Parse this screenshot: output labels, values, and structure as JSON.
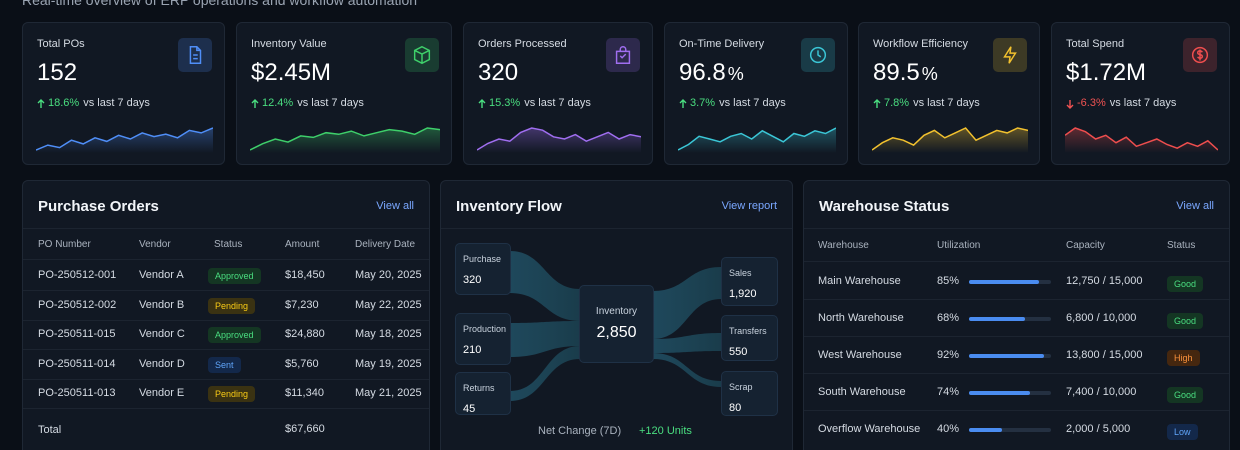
{
  "header": {
    "subtitle": "Real-time overview of ERP operations and workflow automation"
  },
  "kpis": [
    {
      "label": "Total POs",
      "value": "152",
      "change": "18.6%",
      "direction": "up",
      "period": "vs last 7 days",
      "color": "#4f8ef7",
      "trend": [
        10,
        14,
        12,
        18,
        15,
        20,
        17,
        22,
        19,
        24,
        21,
        23,
        20,
        26,
        24,
        28
      ]
    },
    {
      "label": "Inventory Value",
      "value": "$2.45M",
      "change": "12.4%",
      "direction": "up",
      "period": "vs last 7 days",
      "color": "#3ecf6a",
      "trend": [
        8,
        12,
        15,
        13,
        17,
        16,
        19,
        18,
        20,
        17,
        19,
        21,
        20,
        18,
        22,
        21
      ]
    },
    {
      "label": "Orders Processed",
      "value": "320",
      "change": "15.3%",
      "direction": "up",
      "period": "vs last 7 days",
      "color": "#a06ef0",
      "trend": [
        10,
        16,
        20,
        18,
        26,
        30,
        28,
        22,
        20,
        24,
        18,
        22,
        26,
        20,
        24,
        22
      ]
    },
    {
      "label": "On-Time Delivery",
      "value": "96.8",
      "unit": "%",
      "change": "3.7%",
      "direction": "up",
      "period": "vs last 7 days",
      "color": "#3bc6d6",
      "trend": [
        10,
        14,
        20,
        18,
        16,
        20,
        22,
        18,
        24,
        20,
        16,
        22,
        20,
        24,
        22,
        26
      ]
    },
    {
      "label": "Workflow Efficiency",
      "value": "89.5",
      "unit": "%",
      "change": "7.8%",
      "direction": "up",
      "period": "vs last 7 days",
      "color": "#f2c12e",
      "trend": [
        10,
        16,
        20,
        18,
        14,
        22,
        26,
        20,
        24,
        28,
        18,
        22,
        26,
        24,
        28,
        26
      ]
    },
    {
      "label": "Total Spend",
      "value": "$1.72M",
      "change": "-6.3%",
      "direction": "down",
      "period": "vs last 7 days",
      "color": "#ef4e4e",
      "trend": [
        24,
        28,
        26,
        22,
        24,
        20,
        23,
        18,
        20,
        22,
        19,
        17,
        20,
        18,
        21,
        16
      ]
    }
  ],
  "purchase_orders": {
    "title": "Purchase Orders",
    "link": "View all",
    "columns": [
      "PO Number",
      "Vendor",
      "Status",
      "Amount",
      "Delivery Date"
    ],
    "rows": [
      [
        "PO-250512-001",
        "Vendor A",
        "Approved",
        "$18,450",
        "May 20, 2025"
      ],
      [
        "PO-250512-002",
        "Vendor B",
        "Pending",
        "$7,230",
        "May 22, 2025"
      ],
      [
        "PO-250511-015",
        "Vendor C",
        "Approved",
        "$24,880",
        "May 18, 2025"
      ],
      [
        "PO-250511-014",
        "Vendor D",
        "Sent",
        "$5,760",
        "May 19, 2025"
      ],
      [
        "PO-250511-013",
        "Vendor E",
        "Pending",
        "$11,340",
        "May 21, 2025"
      ]
    ],
    "total": [
      "Total",
      "$67,660"
    ]
  },
  "inventory_flow": {
    "title": "Inventory Flow",
    "link": "View report",
    "inputs": [
      {
        "label": "Purchase",
        "value": "320"
      },
      {
        "label": "Production",
        "value": "210"
      },
      {
        "label": "Returns",
        "value": "45"
      }
    ],
    "center": {
      "label": "Inventory",
      "value": "2,850"
    },
    "outputs": [
      {
        "label": "Sales",
        "value": "1,920"
      },
      {
        "label": "Transfers",
        "value": "550"
      },
      {
        "label": "Scrap",
        "value": "80"
      }
    ],
    "footer": {
      "label": "Net Change (7D)",
      "value": "+120 Units"
    }
  },
  "warehouse_status": {
    "title": "Warehouse Status",
    "link": "View all",
    "columns": [
      "Warehouse",
      "Utilization",
      "Capacity",
      "Status"
    ],
    "rows": [
      {
        "name": "Main Warehouse",
        "utilization": "85%",
        "capacity": "12,750 / 15,000",
        "status": "Good"
      },
      {
        "name": "North Warehouse",
        "utilization": "68%",
        "capacity": "6,800 / 10,000",
        "status": "Good"
      },
      {
        "name": "West Warehouse",
        "utilization": "92%",
        "capacity": "13,800 / 15,000",
        "status": "High"
      },
      {
        "name": "South Warehouse",
        "utilization": "74%",
        "capacity": "7,400 / 10,000",
        "status": "Good"
      },
      {
        "name": "Overflow Warehouse",
        "utilization": "40%",
        "capacity": "2,000 / 5,000",
        "status": "Low"
      }
    ]
  }
}
